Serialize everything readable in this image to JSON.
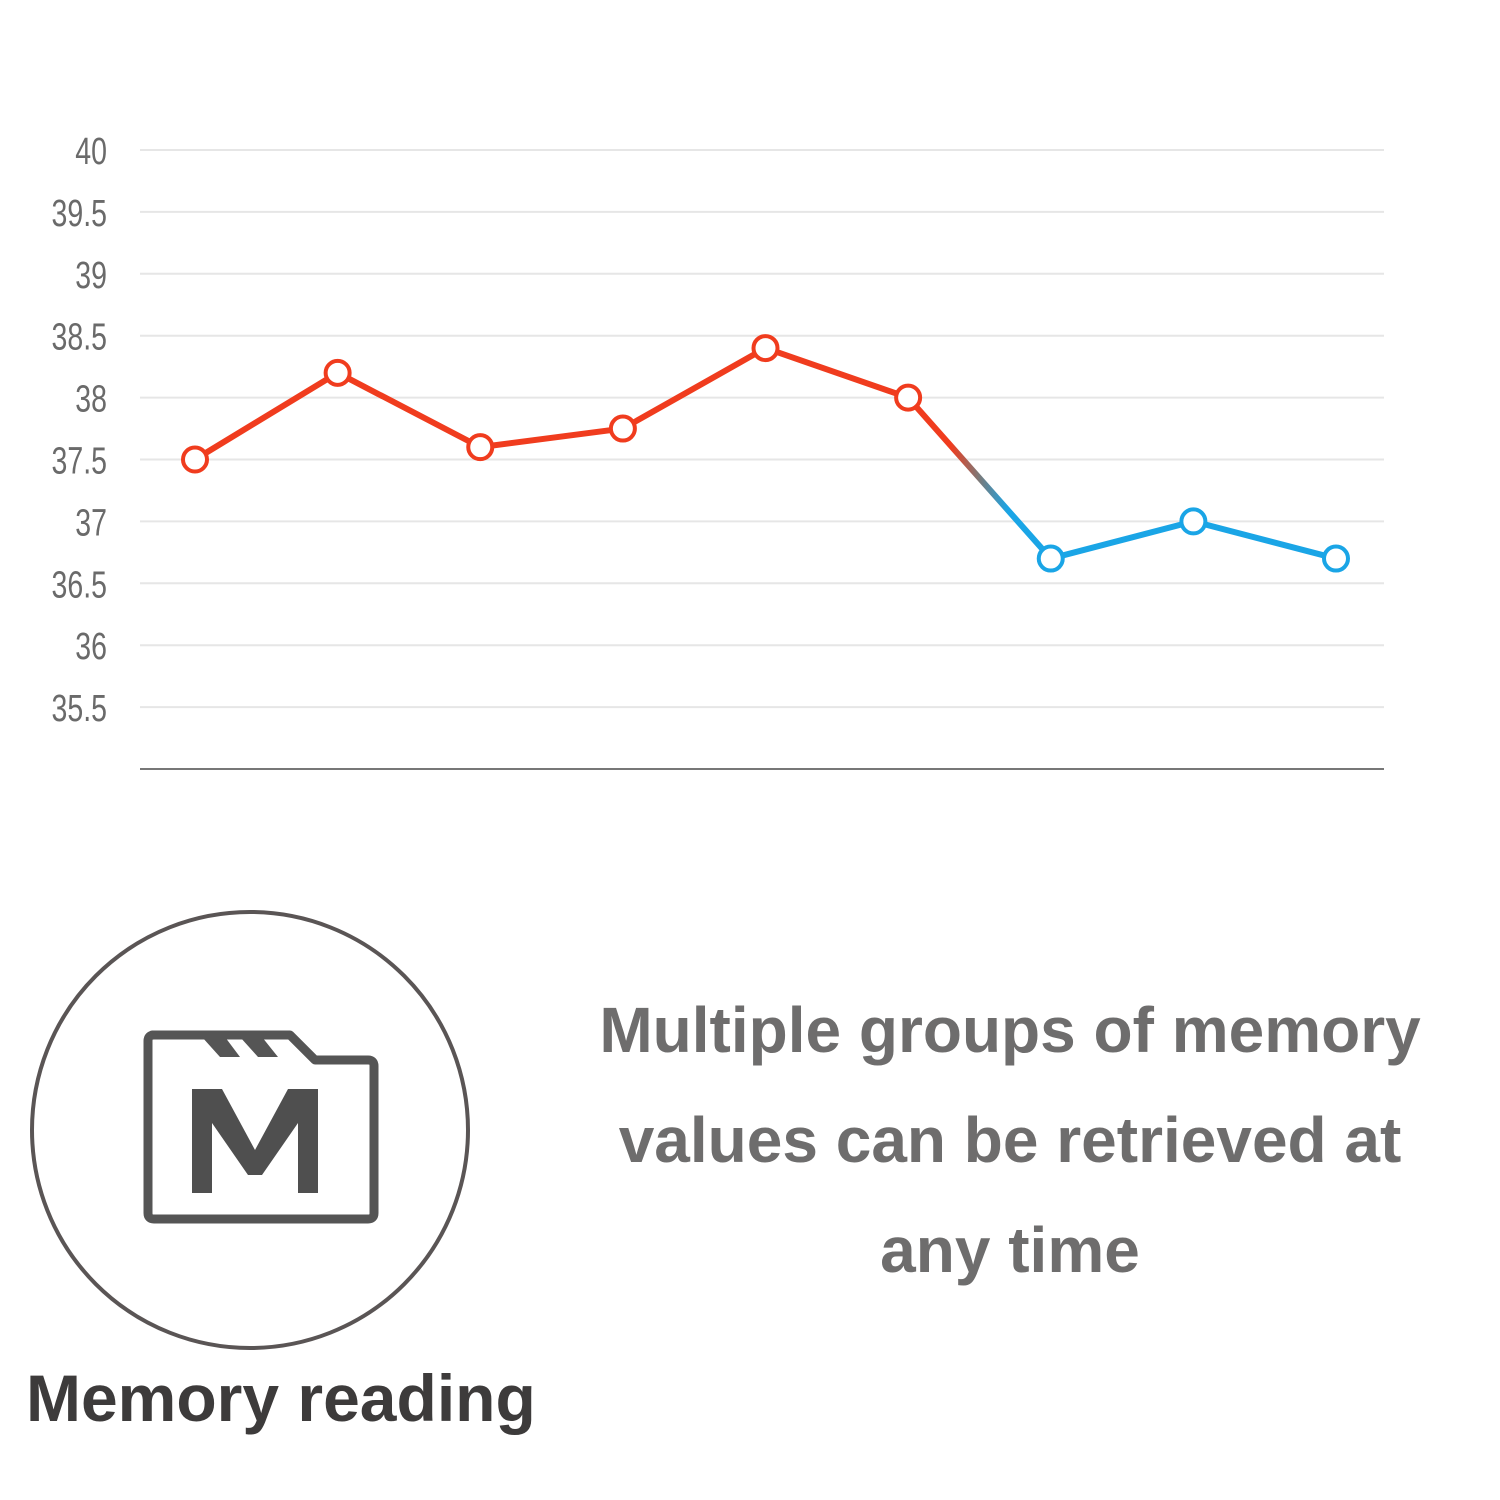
{
  "chart_data": {
    "type": "line",
    "x": [
      1,
      2,
      3,
      4,
      5,
      6,
      7,
      8,
      9
    ],
    "values": [
      37.5,
      38.2,
      37.6,
      37.75,
      38.4,
      38.0,
      36.7,
      37.0,
      36.7
    ],
    "point_colors": [
      "#f03c1e",
      "#f03c1e",
      "#f03c1e",
      "#f03c1e",
      "#f03c1e",
      "#f03c1e",
      "#1aa5e6",
      "#1aa5e6",
      "#1aa5e6"
    ],
    "ylim": [
      35,
      40
    ],
    "yticks": [
      "40",
      "39.5",
      "39",
      "38.5",
      "38",
      "37.5",
      "37",
      "36.5",
      "36",
      "35.5"
    ],
    "grid": true,
    "title": "",
    "xlabel": "",
    "ylabel": ""
  },
  "feature": {
    "icon": "memory-card-m-icon",
    "caption": "Memory reading",
    "description": "Multiple groups of memory values can be retrieved at any time"
  }
}
